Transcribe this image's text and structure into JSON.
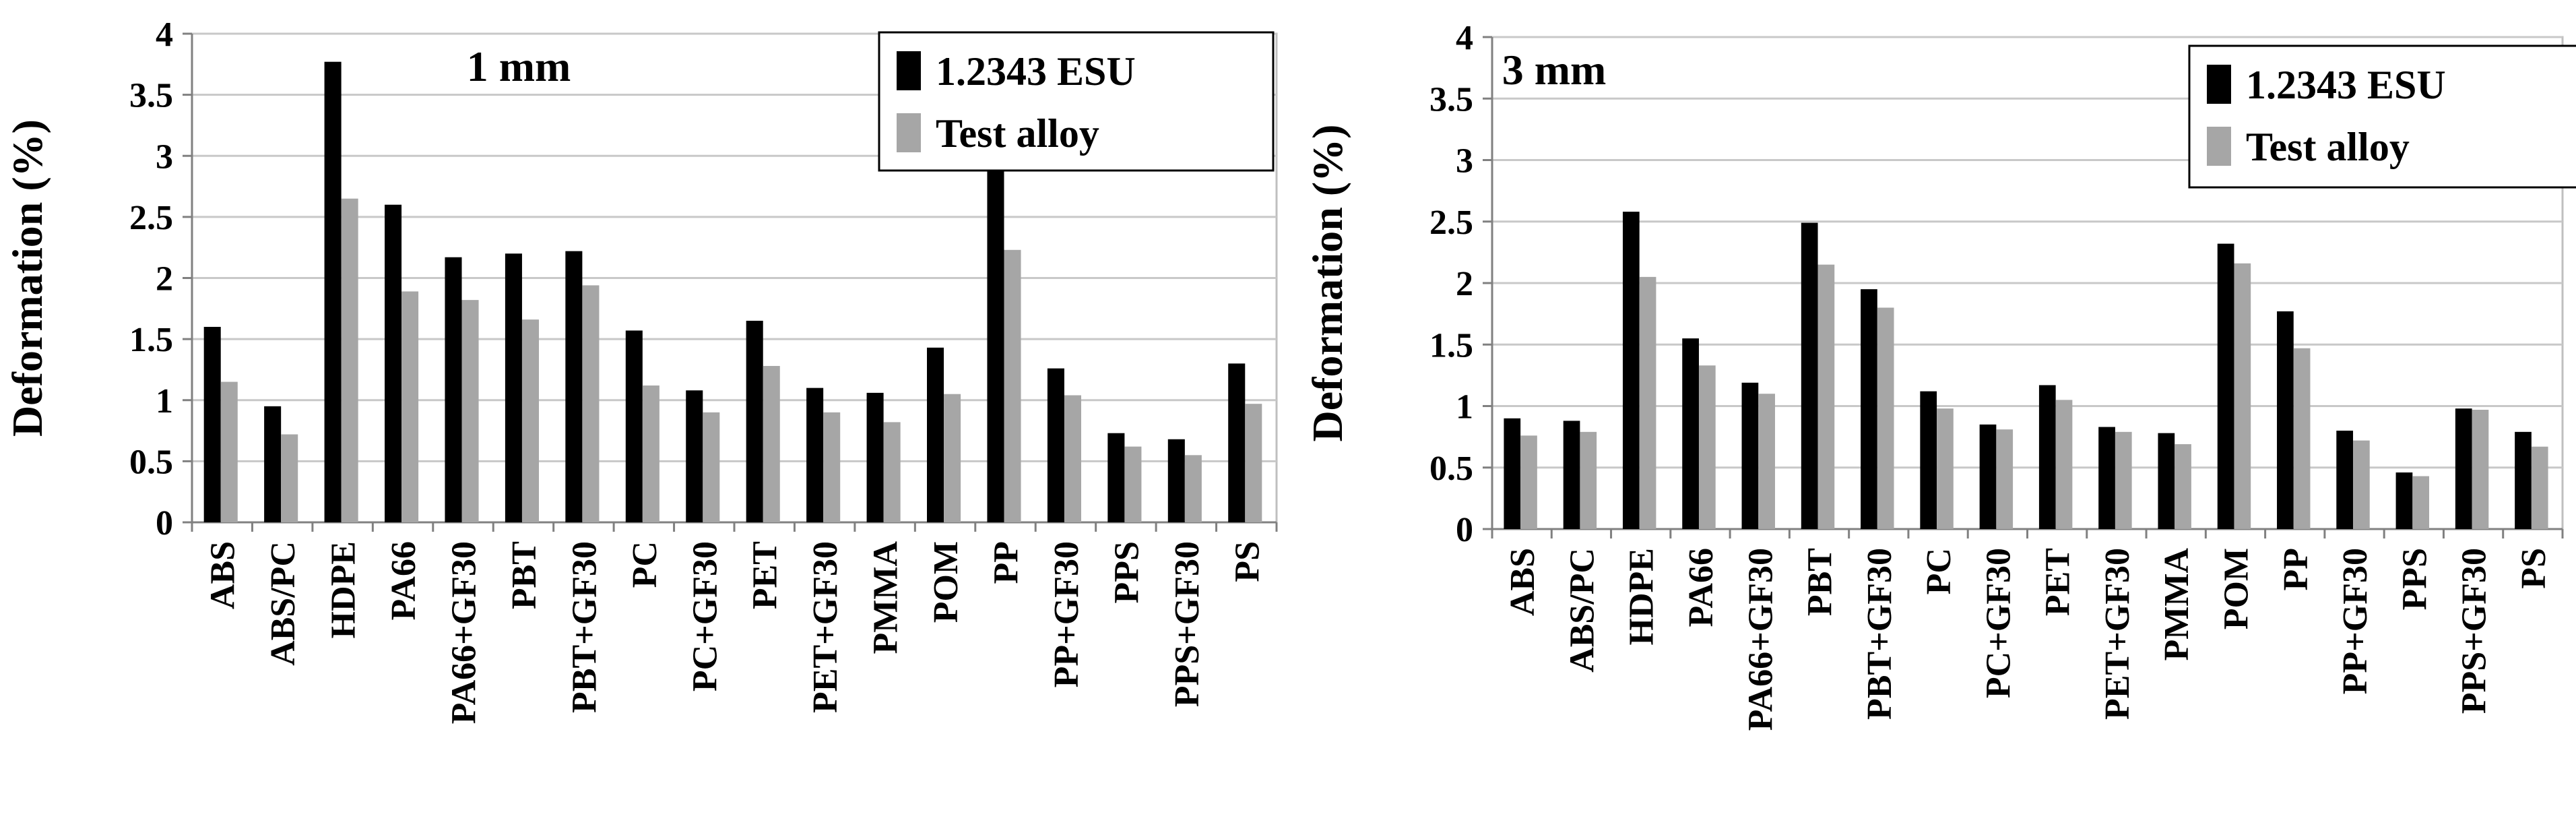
{
  "chart_data": [
    {
      "type": "bar",
      "title": "1 mm",
      "ylabel": "Deformation (%)",
      "xlabel": "",
      "ylim": [
        0,
        4
      ],
      "yticks": [
        "0",
        "0.5",
        "1",
        "1.5",
        "2",
        "2.5",
        "3",
        "3.5",
        "4"
      ],
      "grid": true,
      "legend_position": "top-right",
      "categories": [
        "ABS",
        "ABS/PC",
        "HDPE",
        "PA66",
        "PA66+GF30",
        "PBT",
        "PBT+GF30",
        "PC",
        "PC+GF30",
        "PET",
        "PET+GF30",
        "PMMA",
        "POM",
        "PP",
        "PP+GF30",
        "PPS",
        "PPS+GF30",
        "PS"
      ],
      "series": [
        {
          "name": "1.2343 ESU",
          "color": "#000000",
          "values": [
            1.6,
            0.95,
            3.77,
            2.6,
            2.17,
            2.2,
            2.22,
            1.57,
            1.08,
            1.65,
            1.1,
            1.06,
            1.43,
            2.92,
            1.26,
            0.73,
            0.68,
            1.3
          ]
        },
        {
          "name": "Test alloy",
          "color": "#a6a6a6",
          "values": [
            1.15,
            0.72,
            2.65,
            1.89,
            1.82,
            1.66,
            1.94,
            1.12,
            0.9,
            1.28,
            0.9,
            0.82,
            1.05,
            2.23,
            1.04,
            0.62,
            0.55,
            0.97
          ]
        }
      ]
    },
    {
      "type": "bar",
      "title": "3 mm",
      "ylabel": "Deformation (%)",
      "xlabel": "",
      "ylim": [
        0,
        4
      ],
      "yticks": [
        "0",
        "0.5",
        "1",
        "1.5",
        "2",
        "2.5",
        "3",
        "3.5",
        "4"
      ],
      "grid": true,
      "legend_position": "top-right",
      "categories": [
        "ABS",
        "ABS/PC",
        "HDPE",
        "PA66",
        "PA66+GF30",
        "PBT",
        "PBT+GF30",
        "PC",
        "PC+GF30",
        "PET",
        "PET+GF30",
        "PMMA",
        "POM",
        "PP",
        "PP+GF30",
        "PPS",
        "PPS+GF30",
        "PS"
      ],
      "series": [
        {
          "name": "1.2343 ESU",
          "color": "#000000",
          "values": [
            0.9,
            0.88,
            2.58,
            1.55,
            1.19,
            2.49,
            1.95,
            1.12,
            0.85,
            1.17,
            0.83,
            0.78,
            2.32,
            1.77,
            0.8,
            0.46,
            0.98,
            0.79
          ]
        },
        {
          "name": "Test alloy",
          "color": "#a6a6a6",
          "values": [
            0.76,
            0.79,
            2.05,
            1.33,
            1.1,
            2.15,
            1.8,
            0.98,
            0.81,
            1.05,
            0.79,
            0.69,
            2.16,
            1.47,
            0.72,
            0.43,
            0.97,
            0.67
          ]
        }
      ]
    }
  ]
}
